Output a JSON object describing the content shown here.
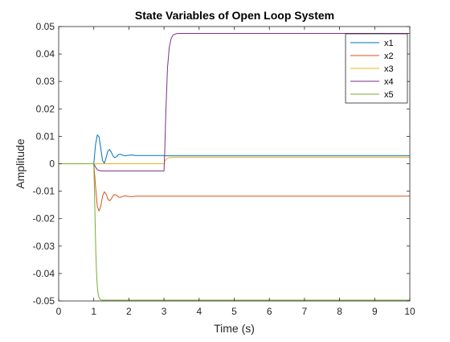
{
  "chart_data": {
    "type": "line",
    "title": "State Variables of Open Loop System",
    "xlabel": "Time (s)",
    "ylabel": "Amplitude",
    "xlim": [
      0,
      10
    ],
    "ylim": [
      -0.05,
      0.05
    ],
    "xticks": [
      0,
      1,
      2,
      3,
      4,
      5,
      6,
      7,
      8,
      9,
      10
    ],
    "xtick_labels": [
      "0",
      "1",
      "2",
      "3",
      "4",
      "5",
      "6",
      "7",
      "8",
      "9",
      "10"
    ],
    "yticks": [
      -0.05,
      -0.04,
      -0.03,
      -0.02,
      -0.01,
      0,
      0.01,
      0.02,
      0.03,
      0.04,
      0.05
    ],
    "ytick_labels": [
      "-0.05",
      "-0.04",
      "-0.03",
      "-0.02",
      "-0.01",
      "0",
      "0.01",
      "0.02",
      "0.03",
      "0.04",
      "0.05"
    ],
    "grid": false,
    "legend_position": "top-right",
    "series": [
      {
        "name": "x1",
        "color": "#0072BD",
        "x": [
          0,
          1.0,
          1.05,
          1.1,
          1.15,
          1.2,
          1.25,
          1.3,
          1.35,
          1.4,
          1.45,
          1.5,
          1.55,
          1.6,
          1.65,
          1.7,
          1.75,
          1.8,
          1.9,
          2.0,
          2.1,
          2.2,
          2.4,
          2.6,
          3.0,
          3.05,
          3.2,
          4.0,
          10
        ],
        "y": [
          0,
          0,
          0.007,
          0.0105,
          0.0098,
          0.0055,
          0.0012,
          0.0001,
          0.0022,
          0.0046,
          0.0052,
          0.0042,
          0.0028,
          0.0022,
          0.0026,
          0.0033,
          0.0035,
          0.0032,
          0.0029,
          0.0031,
          0.0032,
          0.003,
          0.003,
          0.003,
          0.003,
          0.0029,
          0.0029,
          0.0029,
          0.0029
        ]
      },
      {
        "name": "x2",
        "color": "#D95319",
        "x": [
          0,
          1.0,
          1.05,
          1.1,
          1.15,
          1.2,
          1.25,
          1.3,
          1.35,
          1.4,
          1.45,
          1.5,
          1.55,
          1.6,
          1.65,
          1.7,
          1.75,
          1.8,
          1.9,
          2.0,
          2.1,
          2.2,
          2.4,
          10
        ],
        "y": [
          0,
          0,
          -0.0082,
          -0.0155,
          -0.0172,
          -0.0155,
          -0.0118,
          -0.0102,
          -0.011,
          -0.0128,
          -0.0135,
          -0.0128,
          -0.0116,
          -0.0112,
          -0.0115,
          -0.0121,
          -0.0123,
          -0.012,
          -0.0117,
          -0.0119,
          -0.012,
          -0.0118,
          -0.0118,
          -0.0118
        ]
      },
      {
        "name": "x3",
        "color": "#EDB120",
        "x": [
          0,
          3.0,
          3.02,
          3.05,
          3.1,
          3.15,
          3.25,
          3.4,
          10
        ],
        "y": [
          0,
          0,
          0.0008,
          0.0015,
          0.002,
          0.0022,
          0.0023,
          0.0023,
          0.0023
        ]
      },
      {
        "name": "x4",
        "color": "#7E2F8E",
        "x": [
          0,
          1.0,
          1.05,
          1.1,
          1.2,
          1.3,
          1.5,
          3.0,
          3.02,
          3.05,
          3.1,
          3.15,
          3.2,
          3.25,
          3.3,
          3.35,
          3.4,
          3.5,
          3.6,
          3.8,
          10
        ],
        "y": [
          0,
          0,
          -0.0012,
          -0.0022,
          -0.0026,
          -0.0026,
          -0.0026,
          -0.0026,
          0.004,
          0.018,
          0.035,
          0.0425,
          0.0455,
          0.0468,
          0.0472,
          0.0474,
          0.0475,
          0.0475,
          0.0475,
          0.0475,
          0.0475
        ]
      },
      {
        "name": "x5",
        "color": "#77AC30",
        "x": [
          0,
          1.0,
          1.02,
          1.04,
          1.06,
          1.08,
          1.1,
          1.12,
          1.14,
          1.16,
          1.18,
          1.2,
          1.25,
          1.3,
          1.4,
          10
        ],
        "y": [
          0,
          0,
          -0.01,
          -0.022,
          -0.033,
          -0.04,
          -0.0445,
          -0.047,
          -0.0483,
          -0.049,
          -0.0494,
          -0.0496,
          -0.0497,
          -0.0497,
          -0.0497,
          -0.0497
        ]
      }
    ]
  }
}
